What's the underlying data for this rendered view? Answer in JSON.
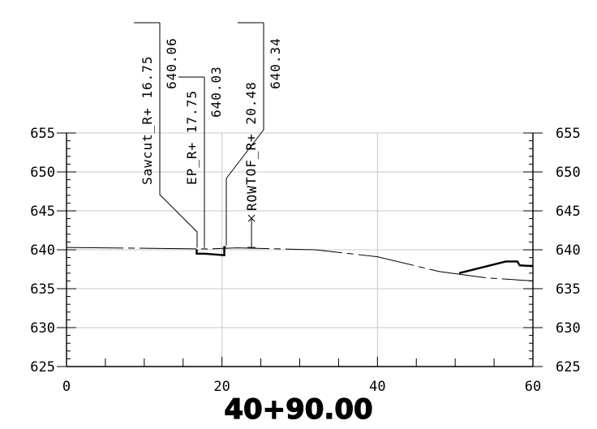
{
  "chart_data": {
    "type": "line",
    "station": "40+90.00",
    "xlim": [
      0,
      60
    ],
    "ylim": [
      625,
      655
    ],
    "x_ticks": [
      0,
      20,
      40,
      60
    ],
    "y_ticks": [
      625,
      630,
      635,
      640,
      645,
      650,
      655
    ],
    "grid": true,
    "existing_ground": [
      [
        0,
        640.3
      ],
      [
        10,
        640.2
      ],
      [
        18,
        640.1
      ],
      [
        22,
        640.25
      ],
      [
        32,
        640.0
      ],
      [
        40,
        639.1
      ],
      [
        48,
        637.2
      ],
      [
        54,
        636.4
      ],
      [
        60,
        636.0
      ]
    ],
    "proposed_section": [
      [
        16.75,
        640.06
      ],
      [
        16.75,
        639.5
      ],
      [
        17.75,
        639.5
      ],
      [
        20.3,
        639.3
      ],
      [
        20.3,
        640.34
      ],
      [
        20.48,
        640.34
      ]
    ],
    "slope_treatment": [
      [
        50.5,
        637.0
      ],
      [
        56.5,
        638.5
      ],
      [
        58.0,
        638.5
      ],
      [
        58.3,
        638.0
      ],
      [
        60,
        637.9
      ]
    ],
    "right_of_way": {
      "label": "ROW",
      "offset": 23.8,
      "elevation": 640.3
    },
    "callouts": [
      {
        "label": "Sawcut_R+",
        "offset_text": "16.75",
        "elevation_text": "640.06",
        "offset": 16.75,
        "elevation": 640.06
      },
      {
        "label": "EP_R+",
        "offset_text": "17.75",
        "elevation_text": "640.03",
        "offset": 17.75,
        "elevation": 640.03
      },
      {
        "label": "TOF_R+",
        "offset_text": "20.48",
        "elevation_text": "640.34",
        "offset": 20.48,
        "elevation": 640.34
      }
    ]
  }
}
